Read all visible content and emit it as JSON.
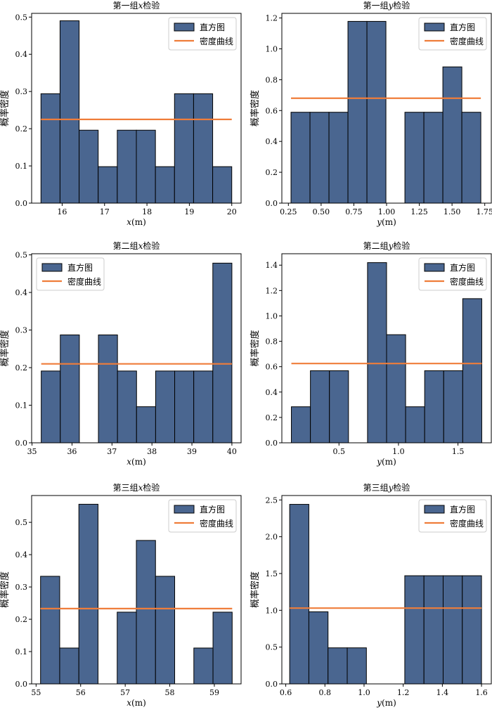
{
  "legend_labels": {
    "hist": "直方图",
    "density": "密度曲线"
  },
  "colors": {
    "bar": "#4a6690",
    "density": "#ef7d3a",
    "edge": "#000000"
  },
  "chart_data": [
    {
      "type": "bar",
      "title": "第一组x检验",
      "title_prefix": "第一组",
      "title_var": "x",
      "title_suffix": "检验",
      "ylabel": "概率密度",
      "xlabel_var": "x",
      "xlabel_unit": "(m)",
      "xlim": [
        15.28,
        20.22
      ],
      "ylim": [
        0,
        0.51
      ],
      "xticks": [
        16,
        17,
        18,
        19,
        20
      ],
      "xtick_labels": [
        "16",
        "17",
        "18",
        "19",
        "20"
      ],
      "yticks": [
        0,
        0.1,
        0.2,
        0.3,
        0.4,
        0.5
      ],
      "ytick_labels": [
        "0.0",
        "0.1",
        "0.2",
        "0.3",
        "0.4",
        "0.5"
      ],
      "bin_edges": [
        15.5,
        15.95,
        16.4,
        16.85,
        17.3,
        17.75,
        18.2,
        18.65,
        19.1,
        19.55,
        20.0
      ],
      "values": [
        0.294,
        0.49,
        0.196,
        0.098,
        0.196,
        0.196,
        0.098,
        0.294,
        0.294,
        0.098
      ],
      "density": 0.225,
      "legend": "top-right"
    },
    {
      "type": "bar",
      "title": "第一组y检验",
      "title_prefix": "第一组",
      "title_var": "y",
      "title_suffix": "检验",
      "ylabel": "概率密度",
      "xlabel_var": "y",
      "xlabel_unit": "(m)",
      "xlim": [
        0.2,
        1.8
      ],
      "ylim": [
        0,
        1.23
      ],
      "xticks": [
        0.25,
        0.5,
        0.75,
        1.0,
        1.25,
        1.5,
        1.75
      ],
      "xtick_labels": [
        "0.25",
        "0.50",
        "0.75",
        "1.00",
        "1.25",
        "1.50",
        "1.75"
      ],
      "yticks": [
        0,
        0.2,
        0.4,
        0.6,
        0.8,
        1.0,
        1.2
      ],
      "ytick_labels": [
        "0.0",
        "0.2",
        "0.4",
        "0.6",
        "0.8",
        "1.0",
        "1.2"
      ],
      "bin_edges": [
        0.27,
        0.415,
        0.56,
        0.705,
        0.85,
        0.995,
        1.14,
        1.285,
        1.43,
        1.575,
        1.72
      ],
      "values": [
        0.589,
        0.589,
        0.589,
        1.178,
        1.178,
        0.0,
        0.589,
        0.589,
        0.883,
        0.589
      ],
      "density": 0.68,
      "legend": "top-right"
    },
    {
      "type": "bar",
      "title": "第二组x检验",
      "title_prefix": "第二组",
      "title_var": "x",
      "title_suffix": "检验",
      "ylabel": "概率密度",
      "xlabel_var": "x",
      "xlabel_unit": "(m)",
      "xlim": [
        34.99,
        40.23
      ],
      "ylim": [
        0,
        0.503
      ],
      "xticks": [
        35,
        36,
        37,
        38,
        39,
        40
      ],
      "xtick_labels": [
        "35",
        "36",
        "37",
        "38",
        "39",
        "40"
      ],
      "yticks": [
        0,
        0.1,
        0.2,
        0.3,
        0.4,
        0.5
      ],
      "ytick_labels": [
        "0.0",
        "0.1",
        "0.2",
        "0.3",
        "0.4",
        "0.5"
      ],
      "bin_edges": [
        35.23,
        35.707,
        36.184,
        36.661,
        37.138,
        37.615,
        38.092,
        38.569,
        39.046,
        39.523,
        40.0
      ],
      "values": [
        0.191,
        0.287,
        0.0,
        0.287,
        0.191,
        0.096,
        0.191,
        0.191,
        0.191,
        0.478
      ],
      "density": 0.21,
      "legend": "top-left"
    },
    {
      "type": "bar",
      "title": "第二组y检验",
      "title_prefix": "第二组",
      "title_var": "y",
      "title_suffix": "检验",
      "ylabel": "概率密度",
      "xlabel_var": "y",
      "xlabel_unit": "(m)",
      "xlim": [
        0.02,
        1.78
      ],
      "ylim": [
        0,
        1.49
      ],
      "xticks": [
        0.5,
        1.0,
        1.5
      ],
      "xtick_labels": [
        "0.5",
        "1.0",
        "1.5"
      ],
      "yticks": [
        0,
        0.2,
        0.4,
        0.6,
        0.8,
        1.0,
        1.2,
        1.4
      ],
      "ytick_labels": [
        "0.0",
        "0.2",
        "0.4",
        "0.6",
        "0.8",
        "1.0",
        "1.2",
        "1.4"
      ],
      "bin_edges": [
        0.1,
        0.26,
        0.42,
        0.58,
        0.74,
        0.9,
        1.06,
        1.22,
        1.38,
        1.54,
        1.7
      ],
      "values": [
        0.284,
        0.568,
        0.568,
        0.0,
        1.42,
        0.852,
        0.284,
        0.568,
        0.568,
        1.136
      ],
      "density": 0.625,
      "legend": "top-right"
    },
    {
      "type": "bar",
      "title": "第三组x检验",
      "title_prefix": "第三组",
      "title_var": "x",
      "title_suffix": "检验",
      "ylabel": "概率密度",
      "xlabel_var": "x",
      "xlabel_unit": "(m)",
      "xlim": [
        54.9,
        59.6
      ],
      "ylim": [
        0,
        0.583
      ],
      "xticks": [
        55,
        56,
        57,
        58,
        59
      ],
      "xtick_labels": [
        "55",
        "56",
        "57",
        "58",
        "59"
      ],
      "yticks": [
        0,
        0.1,
        0.2,
        0.3,
        0.4,
        0.5
      ],
      "ytick_labels": [
        "0.0",
        "0.1",
        "0.2",
        "0.3",
        "0.4",
        "0.5"
      ],
      "bin_edges": [
        55.1,
        55.53,
        55.96,
        56.39,
        56.82,
        57.25,
        57.68,
        58.11,
        58.54,
        58.97,
        59.4
      ],
      "values": [
        0.333,
        0.111,
        0.556,
        0.0,
        0.222,
        0.444,
        0.333,
        0.0,
        0.111,
        0.222
      ],
      "density": 0.233,
      "legend": "top-right"
    },
    {
      "type": "bar",
      "title": "第三组y检验",
      "title_prefix": "第三组",
      "title_var": "y",
      "title_suffix": "检验",
      "ylabel": "概率密度",
      "xlabel_var": "y",
      "xlabel_unit": "(m)",
      "xlim": [
        0.58,
        1.65
      ],
      "ylim": [
        0,
        2.56
      ],
      "xticks": [
        0.6,
        0.8,
        1.0,
        1.2,
        1.4,
        1.6
      ],
      "xtick_labels": [
        "0.6",
        "0.8",
        "1.0",
        "1.2",
        "1.4",
        "1.6"
      ],
      "yticks": [
        0,
        0.5,
        1.0,
        1.5,
        2.0,
        2.5
      ],
      "ytick_labels": [
        "0.0",
        "0.5",
        "1.0",
        "1.5",
        "2.0",
        "2.5"
      ],
      "bin_edges": [
        0.62,
        0.718,
        0.816,
        0.914,
        1.012,
        1.11,
        1.208,
        1.306,
        1.404,
        1.502,
        1.6
      ],
      "values": [
        2.44,
        0.98,
        0.49,
        0.49,
        0.0,
        0.0,
        1.47,
        1.47,
        1.47,
        1.47
      ],
      "density": 1.03,
      "legend": "top-right"
    }
  ]
}
